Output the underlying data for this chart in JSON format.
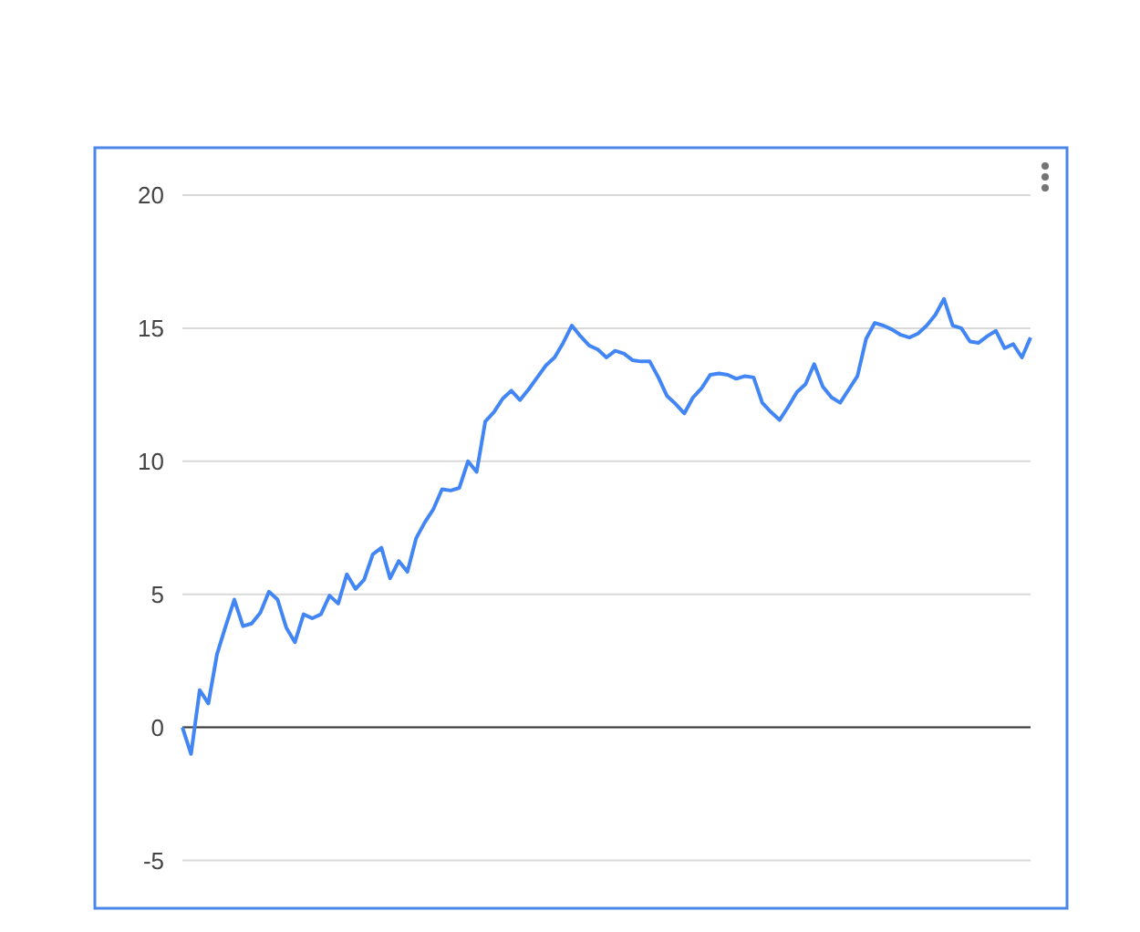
{
  "chart_data": {
    "type": "line",
    "categories": [
      null,
      null,
      null,
      null,
      null,
      null,
      null,
      null,
      null,
      null,
      null,
      null,
      null,
      null,
      null,
      null,
      null,
      null,
      null,
      null,
      null,
      null,
      null,
      null,
      null,
      null,
      null,
      null,
      null,
      null,
      null,
      null,
      null,
      null,
      null,
      null,
      null,
      null,
      null,
      null,
      null,
      null,
      null,
      null,
      null,
      null,
      null,
      null,
      null,
      null,
      null,
      null,
      null,
      null,
      null,
      null,
      null,
      null,
      null,
      null,
      null,
      null,
      null,
      null,
      null,
      null,
      null,
      null,
      null,
      null,
      null,
      null,
      null,
      null,
      null,
      null,
      null,
      null,
      null,
      null,
      null,
      null,
      null,
      null,
      null,
      null,
      null,
      null,
      null,
      null,
      null,
      null,
      null,
      null,
      null,
      null,
      null,
      null,
      null
    ],
    "series": [
      {
        "color": "#4285f4",
        "values": [
          0,
          -1,
          1.4,
          0.9,
          2.75,
          3.8,
          4.8,
          3.8,
          3.9,
          4.3,
          5.1,
          4.8,
          3.75,
          3.2,
          4.25,
          4.1,
          4.25,
          4.95,
          4.65,
          5.75,
          5.2,
          5.55,
          6.5,
          6.75,
          5.6,
          6.25,
          5.85,
          7.1,
          7.7,
          8.2,
          8.95,
          8.9,
          9.0,
          10.0,
          9.6,
          11.5,
          11.85,
          12.35,
          12.65,
          12.3,
          12.7,
          13.15,
          13.6,
          13.9,
          14.45,
          15.1,
          14.7,
          14.35,
          14.2,
          13.9,
          14.15,
          14.05,
          13.8,
          13.75,
          13.75,
          13.15,
          12.45,
          12.15,
          11.8,
          12.4,
          12.75,
          13.25,
          13.3,
          13.25,
          13.1,
          13.2,
          13.15,
          12.2,
          11.85,
          11.55,
          12.05,
          12.6,
          12.9,
          13.65,
          12.8,
          12.4,
          12.2,
          12.7,
          13.2,
          14.6,
          15.2,
          15.1,
          14.95,
          14.75,
          14.65,
          14.8,
          15.1,
          15.5,
          16.1,
          15.1,
          15.0,
          14.5,
          14.45,
          14.7,
          14.9,
          14.25,
          14.4,
          13.9,
          14.65
        ]
      }
    ],
    "ylim": [
      -6.8,
      20
    ],
    "yticks": [
      -5,
      0,
      5,
      10,
      15,
      20
    ],
    "grid": "y",
    "tick_labels": "y",
    "marker": "none",
    "line_style": "solid",
    "ref_lines": [
      {
        "axis": "y",
        "value": 0,
        "color": "#333333"
      }
    ]
  }
}
